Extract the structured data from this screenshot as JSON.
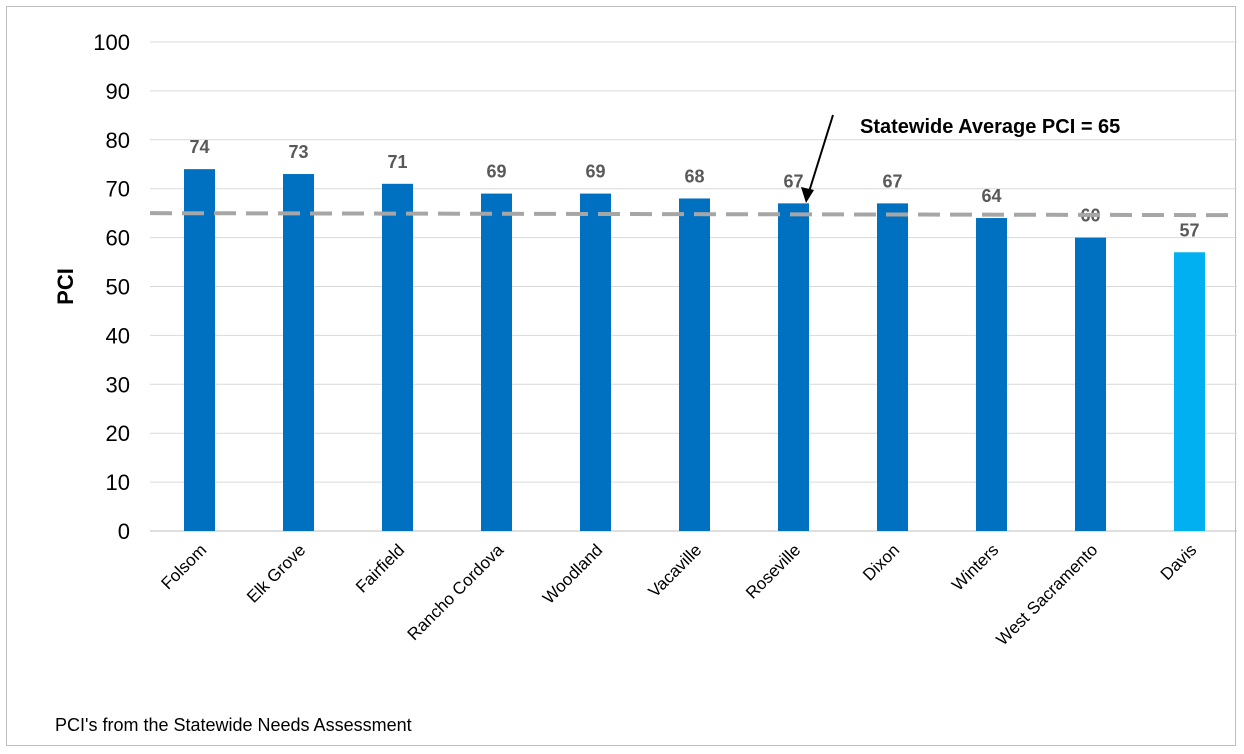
{
  "chart_data": {
    "type": "bar",
    "categories": [
      "Folsom",
      "Elk Grove",
      "Fairfield",
      "Rancho Cordova",
      "Woodland",
      "Vacaville",
      "Roseville",
      "Dixon",
      "Winters",
      "West Sacramento",
      "Davis"
    ],
    "values": [
      74,
      73,
      71,
      69,
      69,
      68,
      67,
      67,
      64,
      60,
      57
    ],
    "bar_colors": [
      "#0070c0",
      "#0070c0",
      "#0070c0",
      "#0070c0",
      "#0070c0",
      "#0070c0",
      "#0070c0",
      "#0070c0",
      "#0070c0",
      "#0070c0",
      "#00b0f0"
    ],
    "ylabel": "PCI",
    "xlabel": "",
    "title": "",
    "ylim": [
      0,
      100
    ],
    "yticks": [
      0,
      10,
      20,
      30,
      40,
      50,
      60,
      70,
      80,
      90,
      100
    ],
    "grid": true,
    "data_labels": true,
    "reference_line": {
      "value": 65,
      "style": "dashed",
      "color": "#a6a6a6"
    },
    "annotation": "Statewide Average PCI = 65"
  },
  "footnote": "PCI's from the Statewide Needs Assessment"
}
